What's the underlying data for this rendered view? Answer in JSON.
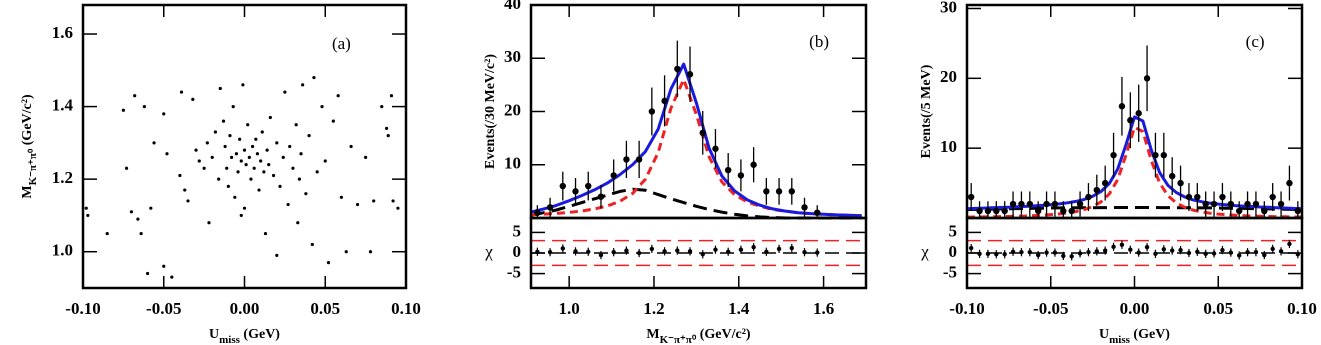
{
  "chart_data": [
    {
      "type": "scatter",
      "panel_label": "(a)",
      "x_label": {
        "text": "U",
        "sub": "miss",
        "unit": " (GeV)"
      },
      "y_label": {
        "text": "M",
        "sub": "K⁻π⁺π⁰",
        "unit": " (GeV/c²)"
      },
      "xlim": [
        -0.1,
        0.1
      ],
      "ylim": [
        0.9,
        1.68
      ],
      "xticks": [
        {
          "value": -0.1,
          "label": "-0.10"
        },
        -0.05,
        {
          "value": 0,
          "label": "0.00"
        },
        0.05,
        {
          "value": 0.1,
          "label": "0.10"
        }
      ],
      "yticks": [
        {
          "value": 1,
          "label": "1.0"
        },
        1.2,
        1.4,
        1.6
      ],
      "color": "#000000",
      "x": [
        -0.098,
        -0.097,
        -0.075,
        -0.073,
        -0.07,
        -0.068,
        -0.066,
        -0.064,
        -0.062,
        -0.06,
        -0.058,
        -0.056,
        -0.05,
        -0.048,
        -0.045,
        -0.04,
        -0.039,
        -0.037,
        -0.035,
        -0.032,
        -0.03,
        -0.028,
        -0.025,
        -0.023,
        -0.022,
        -0.02,
        -0.018,
        -0.016,
        -0.015,
        -0.013,
        -0.012,
        -0.011,
        -0.01,
        -0.009,
        -0.008,
        -0.007,
        -0.006,
        -0.005,
        -0.004,
        -0.003,
        -0.002,
        -0.001,
        0,
        0,
        0.001,
        0.002,
        0.003,
        0.004,
        0.005,
        0.006,
        0.007,
        0.008,
        0.009,
        0.01,
        0.011,
        0.012,
        0.013,
        0.014,
        0.015,
        0.016,
        0.018,
        0.02,
        0.022,
        0.024,
        0.025,
        0.027,
        0.028,
        0.03,
        0.032,
        0.033,
        0.034,
        0.035,
        0.036,
        0.038,
        0.04,
        0.042,
        0.043,
        0.045,
        0.048,
        0.05,
        0.052,
        0.055,
        0.058,
        0.06,
        0.063,
        0.066,
        0.07,
        0.075,
        0.078,
        0.08,
        0.085,
        0.088,
        0.089,
        0.091,
        0.092,
        0.095,
        -0.085,
        -0.05,
        0.02,
        -0.002
      ],
      "values": [
        1.12,
        1.1,
        1.39,
        1.23,
        1.11,
        1.43,
        1.09,
        1.05,
        1.4,
        0.94,
        1.12,
        1.3,
        1.38,
        1.27,
        0.93,
        1.21,
        1.44,
        1.17,
        1.14,
        1.42,
        1.28,
        1.25,
        1.23,
        1.3,
        1.08,
        1.26,
        1.33,
        1.2,
        1.45,
        1.36,
        1.29,
        1.23,
        1.18,
        1.32,
        1.26,
        1.4,
        1.15,
        1.27,
        1.22,
        1.31,
        1.25,
        1.46,
        1.28,
        1.12,
        1.24,
        1.35,
        1.26,
        1.2,
        1.29,
        1.23,
        1.31,
        1.27,
        1.17,
        1.25,
        1.33,
        1.22,
        1.05,
        1.28,
        1.24,
        1.37,
        1.21,
        1.3,
        1.18,
        1.26,
        1.44,
        1.13,
        1.29,
        1.23,
        1.35,
        1.08,
        1.2,
        1.27,
        1.46,
        1.16,
        1.32,
        1.02,
        1.48,
        1.22,
        1.4,
        1.25,
        0.97,
        1.36,
        1.43,
        1.15,
        1.0,
        1.29,
        1.13,
        1.26,
        1.0,
        1.14,
        1.4,
        1.34,
        1.32,
        1.43,
        1.14,
        1.12,
        1.05,
        0.96,
        0.99,
        1.1
      ]
    },
    {
      "type": "fit",
      "panel_label": "(b)",
      "x_label": {
        "text": "M",
        "sub": "K⁻π⁺π⁰",
        "unit": " (GeV/c²)"
      },
      "y_label": {
        "text": "Events(/30 MeV/c²)"
      },
      "xlim": [
        0.91,
        1.7
      ],
      "ylim": [
        0,
        40
      ],
      "xticks": [
        {
          "value": 1,
          "label": "1.0"
        },
        1.2,
        1.4,
        1.6
      ],
      "yticks": [
        10,
        20,
        30,
        40
      ],
      "data": {
        "color": "#000000",
        "x": [
          0.925,
          0.955,
          0.985,
          1.015,
          1.045,
          1.075,
          1.105,
          1.135,
          1.165,
          1.195,
          1.225,
          1.255,
          1.285,
          1.315,
          1.345,
          1.375,
          1.405,
          1.435,
          1.465,
          1.495,
          1.525,
          1.555,
          1.585
        ],
        "values": [
          1,
          2,
          6,
          5,
          6,
          4,
          8,
          11,
          11,
          20,
          22,
          28,
          27,
          16,
          13,
          9,
          8,
          10,
          5,
          5,
          5,
          2,
          1
        ],
        "errors": [
          1.4,
          1.8,
          2.7,
          2.5,
          2.7,
          2.2,
          3,
          3.5,
          3.5,
          4.5,
          4.8,
          5.3,
          5.2,
          4.1,
          3.7,
          3.2,
          3,
          3.3,
          2.5,
          2.5,
          2.5,
          1.8,
          1.4
        ]
      },
      "fits": {
        "x": [
          0.91,
          0.94,
          0.97,
          1.0,
          1.03,
          1.06,
          1.09,
          1.12,
          1.15,
          1.18,
          1.21,
          1.24,
          1.27,
          1.3,
          1.33,
          1.36,
          1.39,
          1.42,
          1.45,
          1.48,
          1.51,
          1.54,
          1.57,
          1.6,
          1.63,
          1.66,
          1.69
        ],
        "curves": [
          {
            "color": "#000000",
            "dash": "14,7",
            "values": [
              0.5,
              1,
              1.5,
              2.2,
              2.9,
              3.6,
              4.3,
              5.0,
              5.4,
              5.2,
              4.4,
              3.6,
              2.9,
              2.2,
              1.6,
              1.1,
              0.7,
              0.4,
              0.2,
              0.1,
              0,
              0,
              0,
              0,
              0,
              0,
              0
            ]
          },
          {
            "color": "#ee2222",
            "dash": "8,5",
            "values": [
              0.6,
              0.71,
              0.86,
              1.05,
              1.32,
              1.7,
              2.26,
              3.16,
              4.64,
              7.3,
              12.3,
              20.6,
              26.0,
              19.4,
              11.5,
              6.8,
              4.4,
              3.0,
              2.2,
              1.6,
              1.3,
              1.0,
              0.83,
              0.69,
              0.59,
              0.5,
              0.43
            ]
          },
          {
            "color": "#1a1adf",
            "dash": "none",
            "values": [
              1.1,
              1.71,
              2.36,
              3.25,
              4.22,
              5.3,
              6.56,
              8.16,
              10.04,
              12.5,
              16.7,
              24.2,
              28.9,
              21.6,
              13.1,
              7.9,
              5.1,
              3.4,
              2.4,
              1.7,
              1.3,
              1.0,
              0.83,
              0.69,
              0.59,
              0.5,
              0.43
            ]
          }
        ]
      },
      "residuals": {
        "label": "χ",
        "ylim": [
          -8.5,
          8.5
        ],
        "yticks": [
          5,
          0,
          -5
        ],
        "ref_lines": [
          {
            "value": 3,
            "color": "#ee2222"
          },
          {
            "value": 0,
            "color": "#000000"
          },
          {
            "value": -3,
            "color": "#ee2222"
          }
        ],
        "values": [
          0.3,
          0.2,
          1.1,
          0.4,
          0.3,
          -0.5,
          0.2,
          0.6,
          0,
          1.0,
          0.4,
          0.6,
          0.4,
          -0.3,
          0.8,
          0.3,
          0.8,
          1.4,
          0.3,
          1.0,
          1.2,
          0.2,
          0.1
        ],
        "errors": [
          1,
          1,
          1,
          1,
          1,
          1,
          1,
          1,
          1,
          1,
          1,
          1,
          1,
          1,
          1,
          1,
          1,
          1,
          1,
          1,
          1,
          1,
          1
        ]
      }
    },
    {
      "type": "fit",
      "panel_label": "(c)",
      "x_label": {
        "text": "U",
        "sub": "miss",
        "unit": " (GeV)"
      },
      "y_label": {
        "text": "Events(/5 MeV)"
      },
      "xlim": [
        -0.1,
        0.1
      ],
      "ylim": [
        0,
        30.5
      ],
      "xticks": [
        {
          "value": -0.1,
          "label": "-0.10"
        },
        -0.05,
        {
          "value": 0,
          "label": "0.00"
        },
        0.05,
        {
          "value": 0.1,
          "label": "0.10"
        }
      ],
      "yticks": [
        10,
        20,
        30
      ],
      "data": {
        "color": "#000000",
        "x": [
          -0.0975,
          -0.0925,
          -0.0875,
          -0.0825,
          -0.0775,
          -0.0725,
          -0.0675,
          -0.0625,
          -0.0575,
          -0.0525,
          -0.0475,
          -0.0425,
          -0.0375,
          -0.0325,
          -0.0275,
          -0.0225,
          -0.0175,
          -0.0125,
          -0.0075,
          -0.0025,
          0.0025,
          0.0075,
          0.0125,
          0.0175,
          0.0225,
          0.0275,
          0.0325,
          0.0375,
          0.0425,
          0.0475,
          0.0525,
          0.0575,
          0.0625,
          0.0675,
          0.0725,
          0.0775,
          0.0825,
          0.0875,
          0.0925,
          0.0975
        ],
        "values": [
          3,
          1,
          1,
          1,
          1,
          2,
          2,
          2,
          1,
          2,
          2,
          1,
          1,
          2,
          3,
          4,
          5,
          9,
          16,
          14,
          15,
          20,
          9,
          9,
          6,
          5,
          3,
          3,
          2,
          2,
          3,
          2,
          1,
          2,
          2,
          1,
          3,
          2,
          5,
          1
        ],
        "errors": [
          2,
          1.4,
          1.4,
          1.4,
          1.4,
          1.8,
          1.8,
          1.8,
          1.4,
          1.8,
          1.8,
          1.4,
          1.4,
          1.8,
          2,
          2.2,
          2.5,
          3.2,
          4.2,
          4,
          4.1,
          4.7,
          3.2,
          3.2,
          2.7,
          2.5,
          2,
          2,
          1.8,
          1.8,
          2,
          1.8,
          1.4,
          1.8,
          1.8,
          1.4,
          2,
          1.8,
          2.5,
          1.4
        ]
      },
      "fits": {
        "x": [
          -0.1,
          -0.095,
          -0.09,
          -0.085,
          -0.08,
          -0.075,
          -0.07,
          -0.065,
          -0.06,
          -0.055,
          -0.05,
          -0.045,
          -0.04,
          -0.035,
          -0.03,
          -0.025,
          -0.02,
          -0.015,
          -0.01,
          -0.005,
          0,
          0.005,
          0.01,
          0.015,
          0.02,
          0.025,
          0.03,
          0.035,
          0.04,
          0.045,
          0.05,
          0.055,
          0.06,
          0.065,
          0.07,
          0.075,
          0.08,
          0.085,
          0.09,
          0.095,
          0.1
        ],
        "curves": [
          {
            "color": "#000000",
            "dash": "14,7",
            "values": [
              1.2,
              1.23,
              1.26,
              1.28,
              1.31,
              1.33,
              1.35,
              1.37,
              1.39,
              1.41,
              1.43,
              1.44,
              1.45,
              1.46,
              1.47,
              1.48,
              1.49,
              1.49,
              1.5,
              1.5,
              1.5,
              1.5,
              1.5,
              1.49,
              1.49,
              1.48,
              1.47,
              1.46,
              1.45,
              1.44,
              1.43,
              1.41,
              1.39,
              1.37,
              1.35,
              1.33,
              1.31,
              1.28,
              1.26,
              1.23,
              1.2
            ]
          },
          {
            "color": "#ee2222",
            "dash": "8,5",
            "values": [
              0.13,
              0.14,
              0.16,
              0.18,
              0.2,
              0.22,
              0.26,
              0.29,
              0.34,
              0.4,
              0.48,
              0.58,
              0.73,
              0.92,
              1.2,
              1.63,
              2.31,
              3.47,
              5.53,
              9.06,
              12.98,
              12.39,
              8.23,
              5.02,
              3.18,
              2.15,
              1.53,
              1.13,
              0.88,
              0.69,
              0.56,
              0.47,
              0.39,
              0.33,
              0.29,
              0.25,
              0.22,
              0.19,
              0.17,
              0.15,
              0.14
            ]
          },
          {
            "color": "#1a1adf",
            "dash": "none",
            "values": [
              1.33,
              1.37,
              1.42,
              1.46,
              1.51,
              1.55,
              1.61,
              1.66,
              1.73,
              1.81,
              1.91,
              2.02,
              2.18,
              2.38,
              2.67,
              3.11,
              3.8,
              4.96,
              7.03,
              10.56,
              14.48,
              13.89,
              9.73,
              6.51,
              4.67,
              3.63,
              3.0,
              2.59,
              2.33,
              2.13,
              1.99,
              1.88,
              1.78,
              1.7,
              1.64,
              1.58,
              1.53,
              1.47,
              1.43,
              1.38,
              1.34
            ]
          }
        ]
      },
      "residuals": {
        "label": "χ",
        "ylim": [
          -8.5,
          8.5
        ],
        "yticks": [
          5,
          0,
          -5
        ],
        "ref_lines": [
          {
            "value": 3,
            "color": "#ee2222"
          },
          {
            "value": 0,
            "color": "#000000"
          },
          {
            "value": -3,
            "color": "#ee2222"
          }
        ],
        "values": [
          1.2,
          -0.2,
          -0.2,
          -0.3,
          -0.3,
          0.3,
          0.2,
          0.2,
          -0.5,
          0.1,
          0.1,
          -0.7,
          -0.8,
          -0.1,
          0.2,
          0.4,
          0.6,
          1.5,
          2.0,
          0.8,
          0.1,
          1.4,
          -0.2,
          0.9,
          0.6,
          0.7,
          0,
          0.3,
          -0.2,
          -0.1,
          0.7,
          0.1,
          -0.6,
          0.2,
          0.2,
          -0.5,
          1.0,
          0.4,
          2.2,
          -0.3
        ],
        "errors": [
          1,
          1,
          1,
          1,
          1,
          1,
          1,
          1,
          1,
          1,
          1,
          1,
          1,
          1,
          1,
          1,
          1,
          1,
          1,
          1,
          1,
          1,
          1,
          1,
          1,
          1,
          1,
          1,
          1,
          1,
          1,
          1,
          1,
          1,
          1,
          1,
          1,
          1,
          1,
          1
        ]
      }
    }
  ]
}
